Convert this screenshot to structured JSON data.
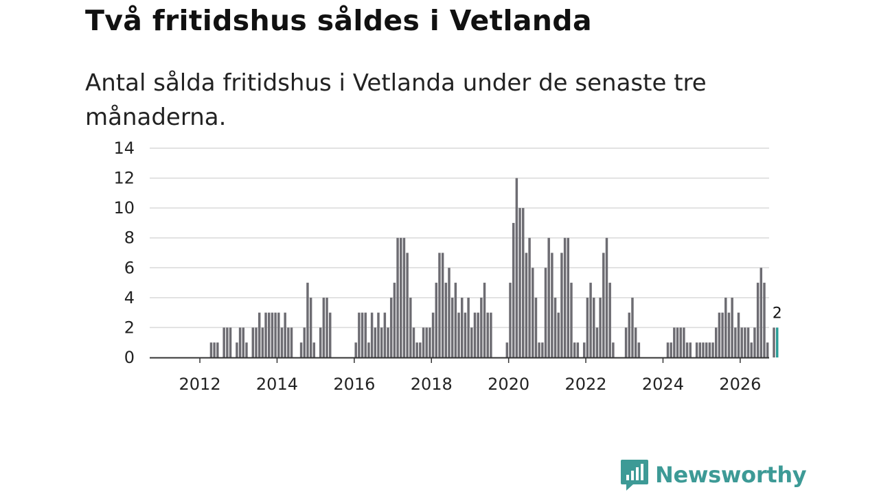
{
  "header": {
    "title": "Två fritidshus såldes i Vetlanda",
    "subtitle": "Antal sålda fritidshus i Vetlanda under de senaste tre månaderna."
  },
  "brand": {
    "name": "Newsworthy",
    "color": "#3d9a96",
    "icon": "newsworthy-logo-icon"
  },
  "colors": {
    "bar": "#6d6c72",
    "highlight": "#2a9d96",
    "grid": "#d9d9d9",
    "axis": "#333333"
  },
  "chart_data": {
    "type": "bar",
    "title": "Två fritidshus såldes i Vetlanda",
    "subtitle": "Antal sålda fritidshus i Vetlanda under de senaste tre månaderna.",
    "xlabel": "",
    "ylabel": "",
    "ylim": [
      0,
      14
    ],
    "yticks": [
      0,
      2,
      4,
      6,
      8,
      10,
      12,
      14
    ],
    "xticks": [
      "2012",
      "2014",
      "2016",
      "2018",
      "2020",
      "2022",
      "2024",
      "2026"
    ],
    "xrange": [
      2010.7,
      2026.75
    ],
    "grid": true,
    "series": [
      {
        "name": "Antal sålda fritidshus",
        "start": "2012-01",
        "frequency": "monthly",
        "values": [
          0,
          0,
          0,
          1,
          1,
          1,
          0,
          2,
          2,
          2,
          0,
          1,
          2,
          2,
          1,
          0,
          2,
          2,
          3,
          2,
          3,
          3,
          3,
          3,
          3,
          2,
          3,
          2,
          2,
          0,
          0,
          1,
          2,
          5,
          4,
          1,
          0,
          2,
          4,
          4,
          3,
          0,
          0,
          0,
          0,
          0,
          0,
          0,
          1,
          3,
          3,
          3,
          1,
          3,
          2,
          3,
          2,
          3,
          2,
          4,
          5,
          8,
          8,
          8,
          7,
          4,
          2,
          1,
          1,
          2,
          2,
          2,
          3,
          5,
          7,
          7,
          5,
          6,
          4,
          5,
          3,
          4,
          3,
          4,
          2,
          3,
          3,
          4,
          5,
          3,
          3,
          0,
          0,
          0,
          0,
          1,
          5,
          9,
          12,
          10,
          10,
          7,
          8,
          6,
          4,
          1,
          1,
          6,
          8,
          7,
          4,
          3,
          7,
          8,
          8,
          5,
          1,
          1,
          0,
          1,
          4,
          5,
          4,
          2,
          4,
          7,
          8,
          5,
          1,
          0,
          0,
          0,
          2,
          3,
          4,
          2,
          1,
          0,
          0,
          0,
          0,
          0,
          0,
          0,
          0,
          1,
          1,
          2,
          2,
          2,
          2,
          1,
          1,
          0,
          1,
          1,
          1,
          1,
          1,
          1,
          2,
          3,
          3,
          4,
          3,
          4,
          2,
          3,
          2,
          2,
          2,
          1,
          2,
          5,
          6,
          5,
          1,
          0,
          2,
          2
        ]
      }
    ],
    "highlight": {
      "index": 179,
      "label": "2"
    }
  }
}
